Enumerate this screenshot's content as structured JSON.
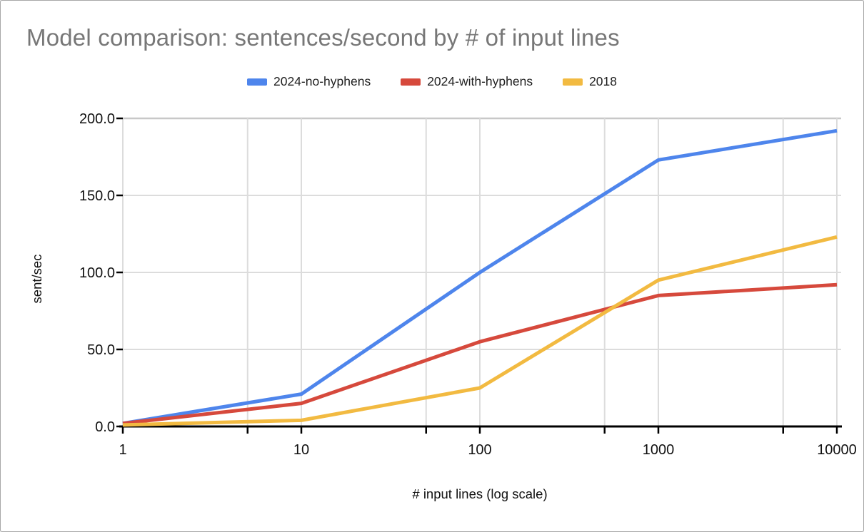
{
  "window": {
    "background": "#ffffff",
    "border_color": "#a7a7a7"
  },
  "chart_data": {
    "type": "line",
    "title": "Model comparison: sentences/second by # of input lines",
    "title_color": "#777777",
    "xlabel": "# input lines (log scale)",
    "ylabel": "sent/sec",
    "x_scale": "log",
    "xlim": [
      1,
      10000
    ],
    "ylim": [
      0,
      200
    ],
    "grid": true,
    "legend_position": "top",
    "x": [
      1,
      10,
      100,
      1000,
      10000
    ],
    "x_tick_labels": [
      "1",
      "10",
      "100",
      "1000",
      "10000"
    ],
    "x_gridlines": [
      1,
      5,
      10,
      50,
      100,
      500,
      1000,
      5000,
      10000
    ],
    "y_ticks": [
      0,
      50,
      100,
      150,
      200
    ],
    "y_tick_labels": [
      "0.0",
      "50.0",
      "100.0",
      "150.0",
      "200.0"
    ],
    "gridline_color": "#dcdcdc",
    "top_gridline_color": "#c8c8c8",
    "axis_color": "#000000",
    "series": [
      {
        "name": "2024-no-hyphens",
        "color": "#4e85ec",
        "values": [
          2,
          21,
          100,
          173,
          192
        ]
      },
      {
        "name": "2024-with-hyphens",
        "color": "#d6493c",
        "values": [
          2,
          15,
          55,
          85,
          92
        ]
      },
      {
        "name": "2018",
        "color": "#f2ba41",
        "values": [
          1,
          4,
          25,
          95,
          123
        ]
      }
    ]
  }
}
